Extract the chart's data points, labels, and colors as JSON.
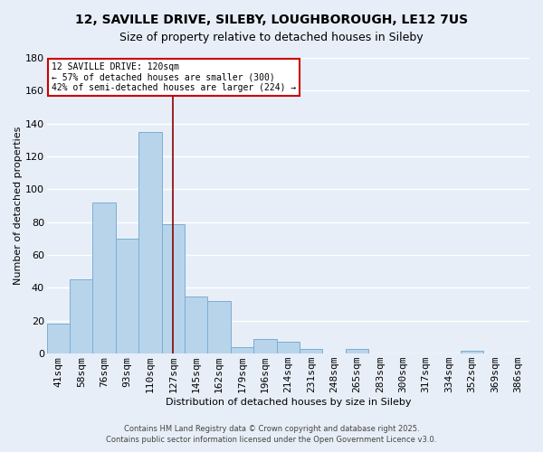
{
  "title_line1": "12, SAVILLE DRIVE, SILEBY, LOUGHBOROUGH, LE12 7US",
  "title_line2": "Size of property relative to detached houses in Sileby",
  "xlabel": "Distribution of detached houses by size in Sileby",
  "ylabel": "Number of detached properties",
  "categories": [
    "41sqm",
    "58sqm",
    "76sqm",
    "93sqm",
    "110sqm",
    "127sqm",
    "145sqm",
    "162sqm",
    "179sqm",
    "196sqm",
    "214sqm",
    "231sqm",
    "248sqm",
    "265sqm",
    "283sqm",
    "300sqm",
    "317sqm",
    "334sqm",
    "352sqm",
    "369sqm",
    "386sqm"
  ],
  "values": [
    18,
    45,
    92,
    70,
    135,
    79,
    35,
    32,
    4,
    9,
    7,
    3,
    0,
    3,
    0,
    0,
    0,
    0,
    2,
    0,
    0
  ],
  "bar_color": "#b8d4eb",
  "bar_edge_color": "#7aaed4",
  "vline_x_index": 5,
  "vline_color": "#8b0000",
  "ylim": [
    0,
    180
  ],
  "yticks": [
    0,
    20,
    40,
    60,
    80,
    100,
    120,
    140,
    160,
    180
  ],
  "annotation_title": "12 SAVILLE DRIVE: 120sqm",
  "annotation_line1": "← 57% of detached houses are smaller (300)",
  "annotation_line2": "42% of semi-detached houses are larger (224) →",
  "footer1": "Contains HM Land Registry data © Crown copyright and database right 2025.",
  "footer2": "Contains public sector information licensed under the Open Government Licence v3.0.",
  "background_color": "#e8eef8",
  "grid_color": "#ffffff"
}
